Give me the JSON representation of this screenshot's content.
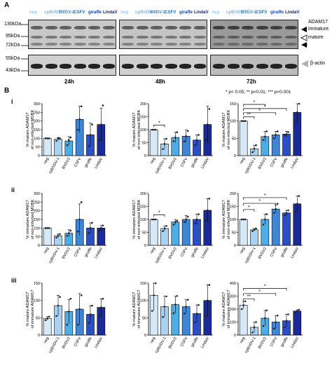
{
  "panels": {
    "a": "A",
    "b": "B"
  },
  "rows": {
    "i": "i",
    "ii": "ii",
    "iii": "iii"
  },
  "blot": {
    "lanes": [
      {
        "label": "neg",
        "color": "#9fc9ef"
      },
      {
        "label": "cpBVDV-1",
        "color": "#7fb3e8"
      },
      {
        "label": "BVDV-2",
        "color": "#3d8fd6"
      },
      {
        "label": "CSFV",
        "color": "#2a6bbf"
      },
      {
        "label": "giraffe",
        "color": "#1b3fae"
      },
      {
        "label": "LindaV",
        "color": "#0f1f7a"
      }
    ],
    "timepoints": [
      "24h",
      "48h",
      "72h"
    ],
    "mw_top": [
      "130kDa",
      "95kDa",
      "72kDa"
    ],
    "mw_bottom": [
      "55kDa",
      "43kDa"
    ],
    "right_labels": {
      "adam": "ADAM17",
      "immature": "immature",
      "mature": "mature",
      "actin": "β-actin"
    }
  },
  "significance_legend": "* p< 0.05; ** p<0.01; *** p<0.001",
  "colors": [
    "#d6e9f8",
    "#a9d2f2",
    "#4aaee8",
    "#3d86d8",
    "#2b4fc4",
    "#1a2a9a"
  ],
  "chart_data": [
    {
      "type": "bar",
      "row": "i",
      "categories": [
        "neg",
        "cpBVDV-1",
        "BVDV2",
        "CSFV",
        "giraffe",
        "LindaV"
      ],
      "values": [
        100,
        95,
        85,
        210,
        120,
        180
      ],
      "errors": [
        0,
        10,
        25,
        75,
        70,
        95
      ],
      "points": [
        [
          100,
          100,
          100
        ],
        [
          85,
          100,
          100
        ],
        [
          60,
          90,
          105
        ],
        [
          150,
          210,
          285
        ],
        [
          55,
          120,
          180
        ],
        [
          90,
          180,
          290
        ]
      ],
      "ylabel": "% mature ADAM17 of non-infected MDBK",
      "yticks": [
        0,
        50,
        100,
        150,
        200,
        250,
        300
      ],
      "ylim": [
        0,
        300
      ],
      "sig": []
    },
    {
      "type": "bar",
      "row": "i",
      "categories": [
        "neg",
        "cpBVDV-1",
        "BVDV2",
        "CSFV",
        "giraffe",
        "LindaV"
      ],
      "values": [
        100,
        45,
        70,
        75,
        60,
        120
      ],
      "errors": [
        0,
        20,
        20,
        25,
        20,
        70
      ],
      "points": [
        [
          100,
          100,
          100
        ],
        [
          25,
          45,
          65
        ],
        [
          55,
          70,
          90
        ],
        [
          55,
          75,
          95
        ],
        [
          40,
          60,
          80
        ],
        [
          60,
          120,
          180
        ]
      ],
      "ylabel": "% mature ADAM17 of non-infected MDBK",
      "yticks": [
        0,
        50,
        100,
        150,
        200
      ],
      "ylim": [
        0,
        200
      ],
      "sig": [
        {
          "from": 0,
          "to": 1,
          "label": "*",
          "y": 118
        }
      ]
    },
    {
      "type": "bar",
      "row": "i",
      "categories": [
        "neg",
        "cpBVDV-1",
        "BVDV2",
        "CSFV",
        "giraffe",
        "LindaV"
      ],
      "values": [
        100,
        20,
        55,
        60,
        62,
        125
      ],
      "errors": [
        0,
        10,
        15,
        10,
        8,
        30
      ],
      "points": [
        [
          100,
          100,
          100
        ],
        [
          10,
          20,
          30
        ],
        [
          45,
          55,
          70
        ],
        [
          50,
          60,
          70
        ],
        [
          58,
          62,
          68
        ],
        [
          95,
          125,
          160
        ]
      ],
      "ylabel": "% mature ADAM17 of non-infected MDBK",
      "yticks": [
        0,
        50,
        100,
        150
      ],
      "ylim": [
        0,
        150
      ],
      "sig": [
        {
          "from": 0,
          "to": 1,
          "label": "**",
          "y": 112
        },
        {
          "from": 0,
          "to": 3,
          "label": "*",
          "y": 124
        },
        {
          "from": 0,
          "to": 4,
          "label": "*",
          "y": 136
        },
        {
          "from": 0,
          "to": 2,
          "label": "*",
          "y": 148
        }
      ]
    },
    {
      "type": "bar",
      "row": "ii",
      "categories": [
        "neg",
        "cpBVDV-1",
        "BVDV2",
        "CSFV",
        "giraffe",
        "LindaV"
      ],
      "values": [
        100,
        55,
        70,
        150,
        100,
        100
      ],
      "errors": [
        0,
        10,
        20,
        90,
        30,
        15
      ],
      "points": [
        [
          100,
          100,
          100
        ],
        [
          45,
          55,
          65
        ],
        [
          55,
          70,
          85
        ],
        [
          80,
          150,
          250
        ],
        [
          70,
          100,
          130
        ],
        [
          85,
          100,
          115
        ]
      ],
      "ylabel": "% immature ADAM17 of non-infected MDBK",
      "yticks": [
        0,
        50,
        100,
        150,
        200,
        250,
        300
      ],
      "ylim": [
        0,
        300
      ],
      "sig": []
    },
    {
      "type": "bar",
      "row": "ii",
      "categories": [
        "neg",
        "cpBVDV-1",
        "BVDV2",
        "CSFV",
        "giraffe",
        "LindaV"
      ],
      "values": [
        100,
        65,
        90,
        100,
        100,
        135
      ],
      "errors": [
        0,
        10,
        10,
        15,
        20,
        45
      ],
      "points": [
        [
          100,
          100,
          100
        ],
        [
          55,
          65,
          75
        ],
        [
          80,
          90,
          95
        ],
        [
          90,
          100,
          110
        ],
        [
          85,
          100,
          120
        ],
        [
          95,
          135,
          180
        ]
      ],
      "ylabel": "% immature ADAM17 of non-infected MDBK",
      "yticks": [
        0,
        50,
        100,
        150,
        200
      ],
      "ylim": [
        0,
        200
      ],
      "sig": [
        {
          "from": 0,
          "to": 1,
          "label": "*",
          "y": 118
        }
      ]
    },
    {
      "type": "bar",
      "row": "ii",
      "categories": [
        "neg",
        "cpBVDV-1",
        "BVDV2",
        "CSFV",
        "giraffe",
        "LindaV"
      ],
      "values": [
        100,
        60,
        100,
        140,
        125,
        160
      ],
      "errors": [
        0,
        5,
        20,
        15,
        10,
        30
      ],
      "points": [
        [
          100,
          100,
          100
        ],
        [
          55,
          60,
          65
        ],
        [
          80,
          100,
          120
        ],
        [
          125,
          140,
          160
        ],
        [
          115,
          125,
          135
        ],
        [
          130,
          160,
          190
        ]
      ],
      "ylabel": "% immature ADAM17 of non-infected MDBK",
      "yticks": [
        0,
        50,
        100,
        150,
        200
      ],
      "ylim": [
        0,
        200
      ],
      "sig": [
        {
          "from": 0,
          "to": 1,
          "label": "*",
          "y": 138
        },
        {
          "from": 0,
          "to": 3,
          "label": "*",
          "y": 162
        },
        {
          "from": 0,
          "to": 4,
          "label": "*",
          "y": 184
        }
      ]
    },
    {
      "type": "bar",
      "row": "iii",
      "categories": [
        "neg",
        "cpBVDV-1",
        "BVDV2",
        "CSFV",
        "giraffe",
        "LindaV"
      ],
      "values": [
        48,
        85,
        68,
        75,
        60,
        80
      ],
      "errors": [
        5,
        30,
        35,
        45,
        25,
        25
      ],
      "points": [
        [
          43,
          48,
          53
        ],
        [
          55,
          85,
          110
        ],
        [
          30,
          68,
          105
        ],
        [
          30,
          75,
          115
        ],
        [
          35,
          60,
          85
        ],
        [
          55,
          80,
          105
        ]
      ],
      "ylabel": "% mature ADAM17 of immature ADAM17",
      "yticks": [
        0,
        50,
        100,
        150
      ],
      "ylim": [
        0,
        150
      ],
      "sig": []
    },
    {
      "type": "bar",
      "row": "iii",
      "categories": [
        "neg",
        "cpBVDV-1",
        "BVDV2",
        "CSFV",
        "giraffe",
        "LindaV"
      ],
      "values": [
        115,
        82,
        88,
        82,
        62,
        100
      ],
      "errors": [
        45,
        30,
        25,
        20,
        25,
        45
      ],
      "points": [
        [
          70,
          115,
          160
        ],
        [
          52,
          82,
          112
        ],
        [
          63,
          88,
          113
        ],
        [
          62,
          82,
          102
        ],
        [
          37,
          62,
          87
        ],
        [
          55,
          100,
          145
        ]
      ],
      "ylabel": "% mature ADAM17 of immature ADAM17",
      "yticks": [
        0,
        50,
        100,
        150
      ],
      "ylim": [
        0,
        150
      ],
      "sig": []
    },
    {
      "type": "bar",
      "row": "iii",
      "categories": [
        "neg",
        "cpBVDV-1",
        "BVDV2",
        "CSFV",
        "giraffe",
        "LindaV"
      ],
      "values": [
        230,
        60,
        130,
        100,
        110,
        185
      ],
      "errors": [
        30,
        40,
        60,
        50,
        50,
        10
      ],
      "points": [
        [
          200,
          230,
          260
        ],
        [
          20,
          60,
          100
        ],
        [
          70,
          130,
          190
        ],
        [
          50,
          100,
          150
        ],
        [
          60,
          110,
          160
        ],
        [
          175,
          185,
          195
        ]
      ],
      "ylabel": "% mature ADAM17 of immature ADAM17",
      "yticks": [
        0,
        100,
        200,
        300,
        400
      ],
      "ylim": [
        0,
        400
      ],
      "sig": [
        {
          "from": 0,
          "to": 1,
          "label": "**",
          "y": 280
        },
        {
          "from": 0,
          "to": 3,
          "label": "*",
          "y": 320
        },
        {
          "from": 0,
          "to": 4,
          "label": "*",
          "y": 360
        }
      ]
    }
  ]
}
